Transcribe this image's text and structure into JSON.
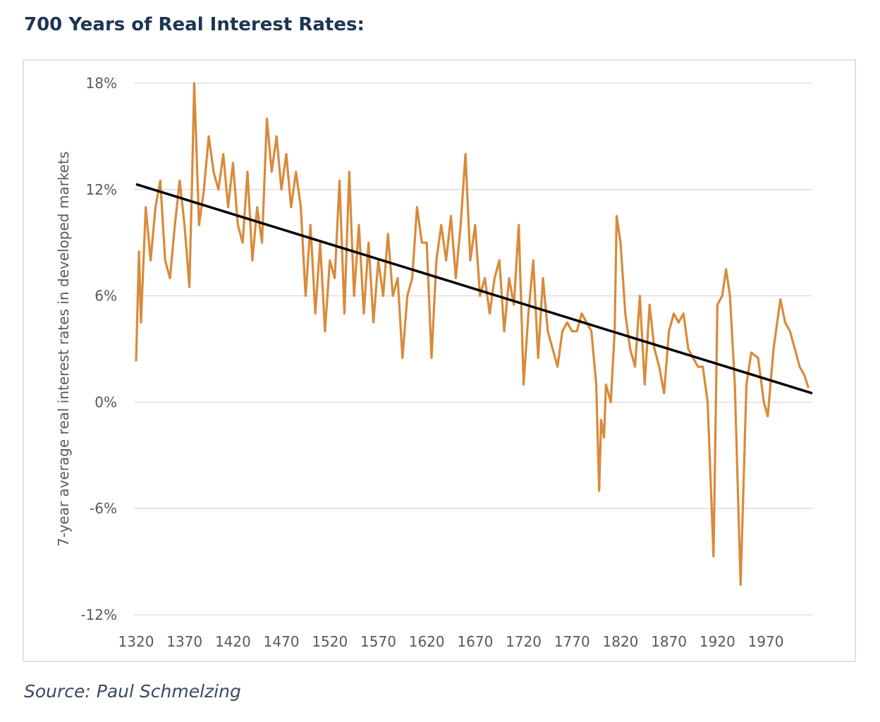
{
  "chart_data": {
    "type": "line",
    "title": "700 Years of Real Interest Rates:",
    "source": "Source: Paul Schmelzing",
    "ylabel": "7-year average real interest rates in developed markets",
    "xlim": [
      1320,
      2018
    ],
    "xticks": [
      1320,
      1370,
      1420,
      1470,
      1520,
      1570,
      1620,
      1670,
      1720,
      1770,
      1820,
      1870,
      1920,
      1970
    ],
    "ylim": [
      -12,
      18
    ],
    "yticks": [
      {
        "value": -12,
        "label": "-12%"
      },
      {
        "value": -6,
        "label": "-6%"
      },
      {
        "value": 0,
        "label": "0%"
      },
      {
        "value": 6,
        "label": "6%"
      },
      {
        "value": 12,
        "label": "12%"
      },
      {
        "value": 18,
        "label": "18%"
      }
    ],
    "grid": true,
    "series": [
      {
        "color": "#d98a3a",
        "x": [
          1320,
          1323,
          1325,
          1330,
          1335,
          1340,
          1345,
          1350,
          1355,
          1360,
          1365,
          1370,
          1375,
          1378,
          1380,
          1385,
          1390,
          1395,
          1400,
          1405,
          1410,
          1415,
          1420,
          1425,
          1430,
          1435,
          1440,
          1445,
          1450,
          1455,
          1460,
          1465,
          1470,
          1475,
          1480,
          1485,
          1490,
          1495,
          1500,
          1505,
          1510,
          1515,
          1520,
          1525,
          1530,
          1535,
          1540,
          1545,
          1550,
          1555,
          1560,
          1565,
          1570,
          1575,
          1580,
          1585,
          1590,
          1595,
          1600,
          1605,
          1610,
          1615,
          1620,
          1625,
          1630,
          1635,
          1640,
          1645,
          1650,
          1655,
          1660,
          1665,
          1670,
          1675,
          1680,
          1685,
          1690,
          1695,
          1700,
          1705,
          1710,
          1715,
          1720,
          1725,
          1730,
          1735,
          1740,
          1745,
          1750,
          1755,
          1760,
          1765,
          1770,
          1775,
          1780,
          1785,
          1790,
          1795,
          1798,
          1800,
          1803,
          1805,
          1810,
          1814,
          1816,
          1820,
          1825,
          1830,
          1835,
          1840,
          1845,
          1850,
          1855,
          1860,
          1865,
          1870,
          1875,
          1880,
          1885,
          1890,
          1895,
          1900,
          1905,
          1910,
          1916,
          1920,
          1925,
          1929,
          1933,
          1938,
          1944,
          1950,
          1955,
          1962,
          1968,
          1972,
          1978,
          1985,
          1990,
          1995,
          2000,
          2005,
          2010,
          2014
        ],
        "values": [
          2.3,
          8.5,
          4.5,
          11,
          8,
          11,
          12.5,
          8,
          7,
          10,
          12.5,
          10,
          6.5,
          13,
          18,
          10,
          12,
          15,
          13,
          12,
          14,
          11,
          13.5,
          10,
          9,
          13,
          8,
          11,
          9,
          16,
          13,
          15,
          12,
          14,
          11,
          13,
          11,
          6,
          10,
          5,
          9,
          4,
          8,
          7,
          12.5,
          5,
          13,
          6,
          10,
          5,
          9,
          4.5,
          8,
          6,
          9.5,
          6,
          7,
          2.5,
          6,
          7,
          11,
          9,
          9,
          2.5,
          8,
          10,
          8,
          10.5,
          7,
          10,
          14,
          8,
          10,
          6,
          7,
          5,
          7,
          8,
          4,
          7,
          5.5,
          10,
          1,
          5,
          8,
          2.5,
          7,
          4,
          3,
          2,
          4,
          4.5,
          4,
          4,
          5,
          4.5,
          4,
          1,
          -5,
          -1,
          -2,
          1,
          0,
          4,
          10.5,
          9,
          5,
          3,
          2,
          6,
          1,
          5.5,
          3,
          2,
          0.5,
          4,
          5,
          4.5,
          5,
          3,
          2.5,
          2,
          2,
          0,
          -8.7,
          5.5,
          6,
          7.5,
          6,
          1,
          -10.3,
          1,
          2.8,
          2.5,
          0,
          -0.8,
          3,
          5.8,
          4.5,
          4,
          3,
          2,
          1.5,
          0.8
        ]
      },
      {
        "color": "#000000",
        "x": [
          1320,
          2018
        ],
        "values": [
          12.3,
          0.5
        ]
      }
    ]
  }
}
